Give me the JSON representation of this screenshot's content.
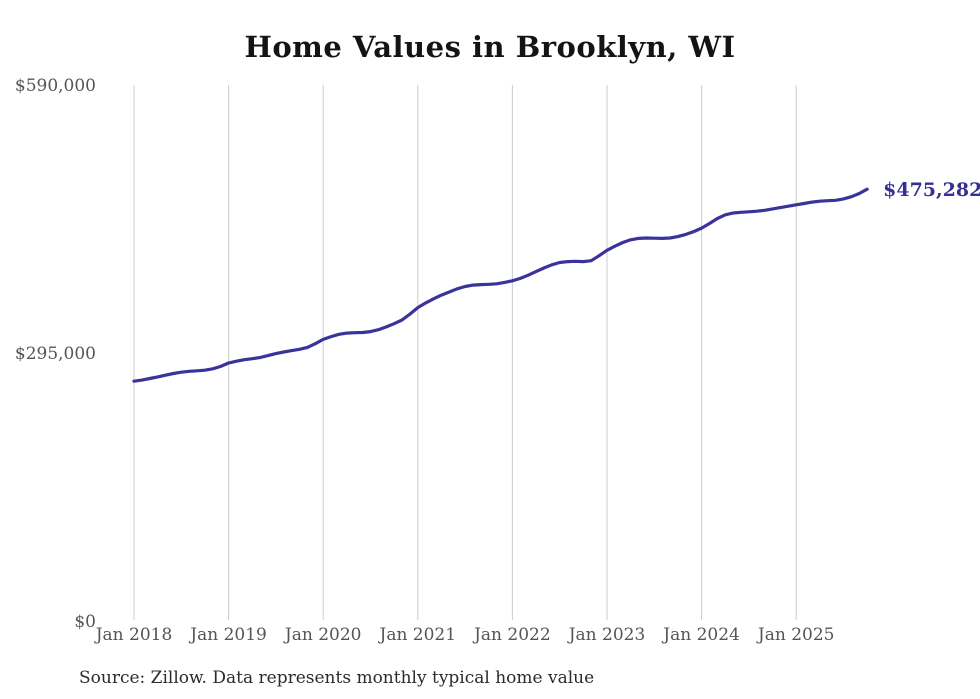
{
  "chart_data": {
    "type": "line",
    "title": "Home Values in Brooklyn, WI",
    "xlabel": "",
    "ylabel": "",
    "ylim": [
      0,
      590000
    ],
    "grid": "vertical-only",
    "legend_position": "none",
    "x_tick_labels": [
      "Jan 2018",
      "Jan 2019",
      "Jan 2020",
      "Jan 2021",
      "Jan 2022",
      "Jan 2023",
      "Jan 2024",
      "Jan 2025"
    ],
    "y_ticks": [
      {
        "label": "$0",
        "value": 0
      },
      {
        "label": "$295,000",
        "value": 295000
      },
      {
        "label": "$590,000",
        "value": 590000
      }
    ],
    "series": [
      {
        "name": "Monthly typical home value",
        "color": "#39339b",
        "start_month": "2018-01",
        "frequency": "monthly",
        "values": [
          264000,
          265200,
          266900,
          268700,
          270600,
          272400,
          273900,
          274900,
          275400,
          276100,
          277600,
          280300,
          284000,
          286000,
          287600,
          288700,
          290100,
          292100,
          294300,
          296100,
          297600,
          299100,
          301200,
          305200,
          310000,
          313100,
          315600,
          316900,
          317300,
          317600,
          318600,
          320700,
          323700,
          327200,
          331300,
          337800,
          345000,
          350100,
          354700,
          358700,
          362200,
          365700,
          368200,
          369700,
          370300,
          370600,
          371200,
          372700,
          374500,
          377100,
          380600,
          384600,
          388600,
          392100,
          394600,
          395600,
          395900,
          395600,
          396600,
          402100,
          408000,
          412600,
          416600,
          419600,
          421100,
          421600,
          421400,
          421100,
          421600,
          423100,
          425600,
          428600,
          432500,
          437600,
          443100,
          447100,
          449100,
          449900,
          450400,
          451100,
          452100,
          453600,
          455100,
          456600,
          458100,
          459600,
          461100,
          462100,
          462600,
          463100,
          464600,
          467100,
          470600,
          475282
        ]
      }
    ],
    "end_label": "$475,282",
    "annotation_color": "#352f96"
  },
  "source_note": "Source: Zillow. Data represents monthly typical home value",
  "colors": {
    "line": "#39339b",
    "gridline": "#cccccc",
    "tick_label": "#555555",
    "title": "#141414",
    "source": "#2b2b2b"
  }
}
